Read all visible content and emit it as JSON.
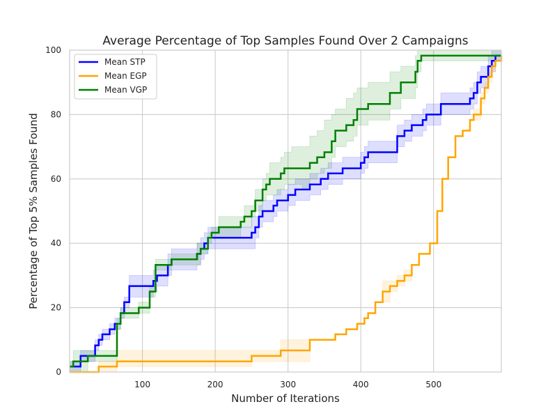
{
  "chart_data": {
    "type": "line",
    "title": "Average Percentage of Top Samples Found Over 2 Campaigns",
    "xlabel": "Number of Iterations",
    "ylabel": "Percentage of Top 5% Samples Found",
    "xlim": [
      0,
      593
    ],
    "ylim": [
      0,
      100
    ],
    "xticks": [
      100,
      200,
      300,
      400,
      500
    ],
    "yticks": [
      0,
      20,
      40,
      60,
      80,
      100
    ],
    "grid": true,
    "legend_position": "upper-left",
    "series": [
      {
        "name": "Mean STP",
        "color": "#0000ff",
        "x": [
          0,
          5,
          15,
          22,
          35,
          40,
          45,
          55,
          62,
          70,
          75,
          82,
          85,
          115,
          120,
          123,
          135,
          140,
          175,
          180,
          185,
          190,
          200,
          250,
          255,
          260,
          265,
          280,
          285,
          290,
          300,
          310,
          320,
          330,
          340,
          345,
          355,
          365,
          375,
          400,
          405,
          410,
          420,
          450,
          455,
          460,
          470,
          485,
          490,
          510,
          550,
          555,
          560,
          565,
          575,
          580,
          585,
          593
        ],
        "y": [
          1.7,
          1.7,
          5,
          5,
          8.3,
          10,
          11.7,
          13.3,
          15,
          18.3,
          21.7,
          26.7,
          26.7,
          28.3,
          30,
          30,
          33.3,
          35,
          36.7,
          38.3,
          40,
          41.7,
          41.7,
          43.3,
          45,
          48.3,
          50,
          51.7,
          53.3,
          53.3,
          55,
          56.7,
          56.7,
          58.3,
          58.3,
          60,
          61.7,
          61.7,
          63.3,
          65,
          66.7,
          68.3,
          68.3,
          73.3,
          73.3,
          75,
          76.7,
          78.3,
          80,
          83.3,
          85,
          86.7,
          90,
          91.7,
          95,
          96.7,
          98.3,
          98.3
        ],
        "band_lower": [
          0,
          0,
          3.3,
          3.3,
          6.7,
          8.3,
          10,
          11.7,
          13.3,
          16.7,
          20,
          23.3,
          23.3,
          25,
          26.7,
          26.7,
          30,
          31.7,
          33.3,
          35,
          36.7,
          38.3,
          38.3,
          38.3,
          41.7,
          45,
          46.7,
          48.3,
          50,
          50,
          51.7,
          53.3,
          53.3,
          55,
          55,
          56.7,
          58.3,
          58.3,
          60,
          61.7,
          63.3,
          65,
          65,
          70,
          70,
          71.7,
          73.3,
          75,
          76.7,
          80,
          81.7,
          83.3,
          86.7,
          88.3,
          91.7,
          93.3,
          96.7,
          96.7
        ],
        "band_upper": [
          3.3,
          3.3,
          6.7,
          6.7,
          10,
          11.7,
          13.3,
          15,
          16.7,
          20,
          23.3,
          30,
          30,
          31.7,
          33.3,
          33.3,
          36.7,
          38.3,
          40,
          41.7,
          43.3,
          45,
          45,
          48.3,
          48.3,
          51.7,
          53.3,
          55,
          56.7,
          56.7,
          58.3,
          60,
          60,
          61.7,
          61.7,
          63.3,
          65,
          65,
          66.7,
          68.3,
          70,
          71.7,
          71.7,
          76.7,
          76.7,
          78.3,
          80,
          81.7,
          83.3,
          86.7,
          88.3,
          90,
          93.3,
          95,
          98.3,
          100,
          100,
          100
        ]
      },
      {
        "name": "Mean EGP",
        "color": "#ffa500",
        "x": [
          0,
          40,
          65,
          250,
          290,
          330,
          365,
          380,
          395,
          405,
          410,
          420,
          430,
          440,
          450,
          455,
          460,
          470,
          480,
          495,
          505,
          512,
          520,
          530,
          540,
          550,
          555,
          565,
          570,
          575,
          580,
          585,
          593
        ],
        "y": [
          0,
          1.7,
          3.3,
          5,
          6.7,
          10,
          11.7,
          13.3,
          15,
          16.7,
          18.3,
          21.7,
          25,
          26.7,
          28.3,
          28.3,
          30,
          33.3,
          36.7,
          40,
          50,
          60,
          66.7,
          73.3,
          75,
          78.3,
          80,
          85,
          88.3,
          91.7,
          95,
          96.7,
          98.3
        ],
        "band_lower": [
          0,
          0,
          1.7,
          3.3,
          3.3,
          10,
          11.7,
          13.3,
          15,
          16.7,
          18.3,
          21.7,
          21.7,
          25,
          26.7,
          26.7,
          28.3,
          33.3,
          36.7,
          40,
          50,
          60,
          66.7,
          73.3,
          75,
          78.3,
          78.3,
          83.3,
          86.7,
          90,
          93.3,
          96.7,
          96.7
        ],
        "band_upper": [
          0,
          3.3,
          6.7,
          6.7,
          10,
          10,
          11.7,
          13.3,
          15,
          16.7,
          18.3,
          21.7,
          28.3,
          28.3,
          30,
          30,
          31.7,
          33.3,
          36.7,
          40,
          50,
          60,
          66.7,
          73.3,
          75,
          78.3,
          81.7,
          86.7,
          90,
          93.3,
          96.7,
          96.7,
          100
        ]
      },
      {
        "name": "Mean VGP",
        "color": "#008000",
        "x": [
          0,
          5,
          25,
          65,
          70,
          95,
          110,
          118,
          140,
          175,
          180,
          190,
          195,
          205,
          235,
          240,
          250,
          255,
          265,
          270,
          275,
          290,
          295,
          305,
          320,
          330,
          340,
          350,
          360,
          365,
          380,
          390,
          395,
          410,
          440,
          455,
          465,
          475,
          478,
          483,
          593
        ],
        "y": [
          1.7,
          3.3,
          5,
          15,
          18.3,
          20,
          25,
          33.3,
          35,
          36.7,
          38.3,
          41.7,
          43.3,
          45,
          46.7,
          48.3,
          50,
          53.3,
          56.7,
          58.3,
          60,
          61.7,
          63.3,
          63.3,
          63.3,
          65,
          66.7,
          68.3,
          71.7,
          75,
          76.7,
          78.3,
          81.7,
          83.3,
          86.7,
          90,
          90,
          93.3,
          96.7,
          98.3,
          98.3
        ],
        "band_lower": [
          0,
          0,
          3.3,
          13.3,
          16.7,
          18.3,
          23.3,
          31.7,
          33.3,
          33.3,
          36.7,
          40,
          41.7,
          41.7,
          45,
          45,
          48.3,
          50,
          53.3,
          55,
          55,
          56.7,
          58.3,
          58.3,
          56.7,
          60,
          61.7,
          63.3,
          66.7,
          70,
          71.7,
          73.3,
          76.7,
          78.3,
          81.7,
          85,
          85,
          88.3,
          93.3,
          96.7,
          96.7
        ],
        "band_upper": [
          3.3,
          6.7,
          6.7,
          16.7,
          20,
          21.7,
          26.7,
          35,
          36.7,
          40,
          40,
          43.3,
          45,
          48.3,
          48.3,
          51.7,
          51.7,
          56.7,
          60,
          61.7,
          65,
          66.7,
          68.3,
          70,
          70,
          73.3,
          75,
          78.3,
          80,
          81.7,
          85,
          86.7,
          88.3,
          90,
          93.3,
          95,
          95,
          98.3,
          100,
          100,
          100
        ]
      }
    ]
  }
}
